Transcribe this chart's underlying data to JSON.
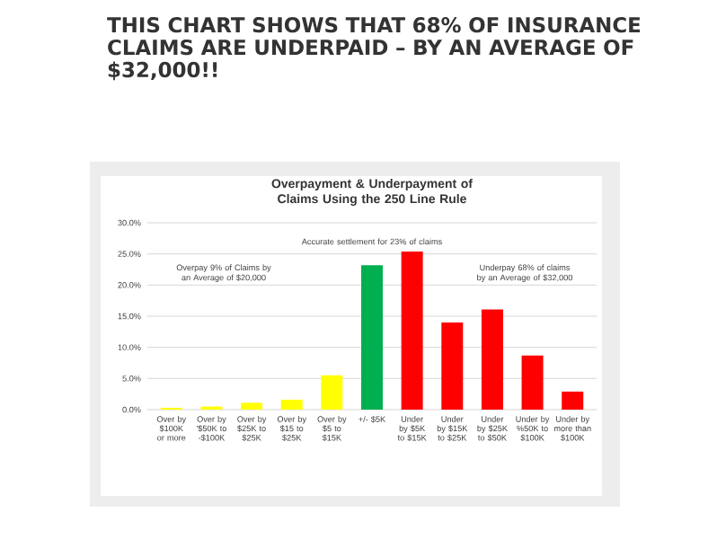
{
  "chart_data": {
    "type": "bar",
    "title": "THIS CHART SHOWS THAT 68% OF INSURANCE CLAIMS ARE UNDERPAID – BY AN AVERAGE OF $32,000!!",
    "subtitle": "Overpayment & Underpayment of Claims Using the 250 Line Rule",
    "categories": [
      "Over by $100K or more",
      "Over by '$50K to -$100K",
      "Over by $25K to $25K",
      "Over by $15 to $25K",
      "Over by $5 to $15K",
      "+/- $5K",
      "Under by $5K to $15K",
      "Under by $15K to $25K",
      "Under by $25K to $50K",
      "Under by %50K to $100K",
      "Under by more than $100K"
    ],
    "values": [
      0.3,
      0.5,
      1.1,
      1.6,
      5.5,
      23.2,
      25.4,
      14.0,
      16.1,
      8.7,
      2.9
    ],
    "colors": [
      "#ffff00",
      "#ffff00",
      "#ffff00",
      "#ffff00",
      "#ffff00",
      "#00b050",
      "#ff0000",
      "#ff0000",
      "#ff0000",
      "#ff0000",
      "#ff0000"
    ],
    "ylim": [
      0,
      30
    ],
    "yticks": [
      {
        "value": 0,
        "label": "0.0%"
      },
      {
        "value": 5,
        "label": "5.0%"
      },
      {
        "value": 10,
        "label": "10.0%"
      },
      {
        "value": 15,
        "label": "15.0%"
      },
      {
        "value": 20,
        "label": "20.0%"
      },
      {
        "value": 25,
        "label": "25.0%"
      },
      {
        "value": 30,
        "label": "30.0%"
      }
    ],
    "grid": "y",
    "annotations": [
      "Accurate settlement for 23% of claims",
      "Overpay 9% of Claims by an Average of $20,000",
      "Underpay 68% of claims by an Average of $32,000"
    ]
  }
}
